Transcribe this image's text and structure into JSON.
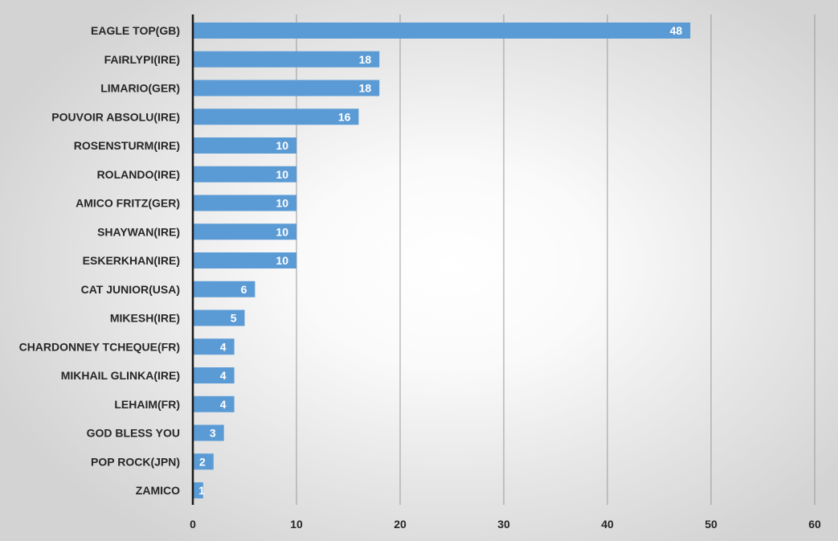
{
  "chart_data": {
    "type": "bar",
    "orientation": "horizontal",
    "categories": [
      "EAGLE TOP(GB)",
      "FAIRLYPI(IRE)",
      "LIMARIO(GER)",
      "POUVOIR ABSOLU(IRE)",
      "ROSENSTURM(IRE)",
      "ROLANDO(IRE)",
      "AMICO FRITZ(GER)",
      "SHAYWAN(IRE)",
      "ESKERKHAN(IRE)",
      "CAT JUNIOR(USA)",
      "MIKESH(IRE)",
      "CHARDONNEY TCHEQUE(FR)",
      "MIKHAIL GLINKA(IRE)",
      "LEHAIM(FR)",
      "GOD BLESS YOU",
      "POP ROCK(JPN)",
      "ZAMICO"
    ],
    "values": [
      48,
      18,
      18,
      16,
      10,
      10,
      10,
      10,
      10,
      6,
      5,
      4,
      4,
      4,
      3,
      2,
      1
    ],
    "xlim": [
      0,
      60
    ],
    "xticks": [
      0,
      10,
      20,
      30,
      40,
      50,
      60
    ],
    "grid": "vertical",
    "data_labels": true,
    "bar_color": "#5b9bd5",
    "title": "",
    "xlabel": "",
    "ylabel": ""
  }
}
